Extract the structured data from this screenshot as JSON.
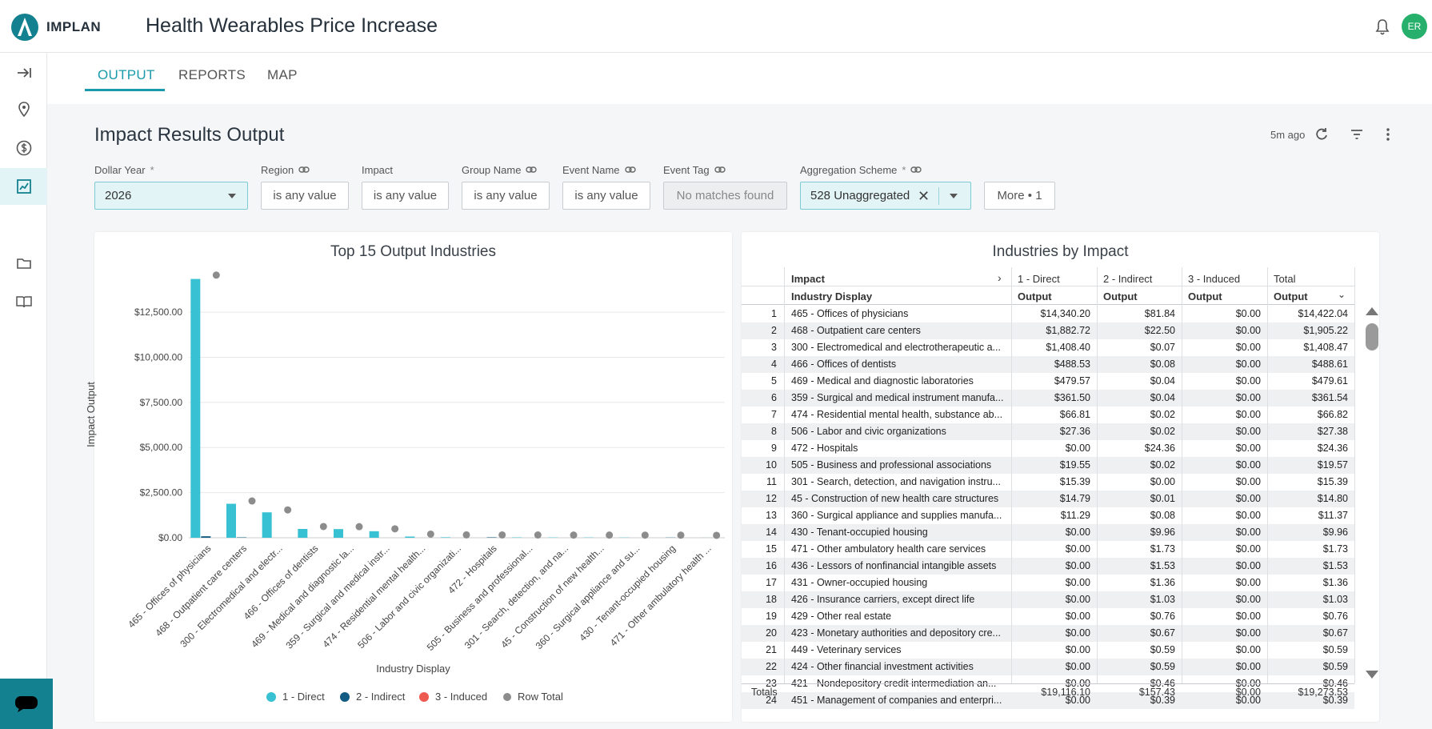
{
  "brand": "IMPLAN",
  "app_title": "Health Wearables Price Increase",
  "user_initials": "ER",
  "colors": {
    "accent": "#1a9bab",
    "direct": "#38c1d3",
    "indirect": "#125b82",
    "induced": "#ef5a50",
    "total": "#8c8c8c"
  },
  "tabs": [
    "OUTPUT",
    "REPORTS",
    "MAP"
  ],
  "section_title": "Impact Results Output",
  "updated": "5m ago",
  "filters": {
    "dollar_year": {
      "label": "Dollar Year",
      "req": "*",
      "value": "2026"
    },
    "region": {
      "label": "Region",
      "value": "is any value"
    },
    "impact": {
      "label": "Impact",
      "value": "is any value"
    },
    "group_name": {
      "label": "Group Name",
      "value": "is any value"
    },
    "event_name": {
      "label": "Event Name",
      "value": "is any value"
    },
    "event_tag": {
      "label": "Event Tag",
      "value": "No matches found"
    },
    "aggregation": {
      "label": "Aggregation Scheme",
      "req": "*",
      "value": "528 Unaggregated"
    },
    "more": "More • 1"
  },
  "chart_data": {
    "type": "bar",
    "title": "Top 15 Output Industries",
    "xlabel": "Industry Display",
    "ylabel": "Impact Output",
    "ylim": [
      0,
      14500
    ],
    "yticks": [
      "$0.00",
      "$2,500.00",
      "$5,000.00",
      "$7,500.00",
      "$10,000.00",
      "$12,500.00"
    ],
    "categories": [
      "465 - Offices of physicians",
      "468 - Outpatient care centers",
      "300 - Electromedical and electr...",
      "466 - Offices of dentists",
      "469 - Medical and diagnostic la...",
      "359 - Surgical and medical instr...",
      "474 - Residential mental health...",
      "506 - Labor and civic organizati...",
      "472 - Hospitals",
      "505 - Business and professional...",
      "301 - Search, detection, and na...",
      "45 - Construction of new health...",
      "360 - Surgical appliance and su...",
      "430 - Tenant-occupied housing",
      "471 - Other ambulatory health ..."
    ],
    "series": [
      {
        "name": "1 - Direct",
        "values": [
          14340.2,
          1882.72,
          1408.4,
          488.53,
          479.57,
          361.5,
          66.81,
          27.36,
          0,
          19.55,
          15.39,
          14.79,
          11.29,
          0,
          0
        ]
      },
      {
        "name": "2 - Indirect",
        "values": [
          81.84,
          22.5,
          0.07,
          0.08,
          0.04,
          0.04,
          0.02,
          0.02,
          24.36,
          0.02,
          0,
          0.01,
          0.08,
          9.96,
          1.73
        ]
      },
      {
        "name": "3 - Induced",
        "values": [
          0,
          0,
          0,
          0,
          0,
          0,
          0,
          0,
          0,
          0,
          0,
          0,
          0,
          0,
          0
        ]
      },
      {
        "name": "Row Total",
        "values": [
          14422.04,
          1905.22,
          1408.47,
          488.61,
          479.61,
          361.54,
          66.82,
          27.38,
          24.36,
          19.57,
          15.39,
          14.8,
          11.37,
          9.96,
          1.73
        ]
      }
    ],
    "legend": [
      "1 - Direct",
      "2 - Indirect",
      "3 - Induced",
      "Row Total"
    ]
  },
  "table": {
    "title": "Industries by Impact",
    "group_header": "Impact",
    "col_groups": [
      "1 - Direct",
      "2 - Indirect",
      "3 - Induced",
      "Total"
    ],
    "row_header": "Industry Display",
    "measure": "Output",
    "rows": [
      [
        "1",
        "465 - Offices of physicians",
        "$14,340.20",
        "$81.84",
        "$0.00",
        "$14,422.04"
      ],
      [
        "2",
        "468 - Outpatient care centers",
        "$1,882.72",
        "$22.50",
        "$0.00",
        "$1,905.22"
      ],
      [
        "3",
        "300 - Electromedical and electrotherapeutic a...",
        "$1,408.40",
        "$0.07",
        "$0.00",
        "$1,408.47"
      ],
      [
        "4",
        "466 - Offices of dentists",
        "$488.53",
        "$0.08",
        "$0.00",
        "$488.61"
      ],
      [
        "5",
        "469 - Medical and diagnostic laboratories",
        "$479.57",
        "$0.04",
        "$0.00",
        "$479.61"
      ],
      [
        "6",
        "359 - Surgical and medical instrument manufa...",
        "$361.50",
        "$0.04",
        "$0.00",
        "$361.54"
      ],
      [
        "7",
        "474 - Residential mental health, substance ab...",
        "$66.81",
        "$0.02",
        "$0.00",
        "$66.82"
      ],
      [
        "8",
        "506 - Labor and civic organizations",
        "$27.36",
        "$0.02",
        "$0.00",
        "$27.38"
      ],
      [
        "9",
        "472 - Hospitals",
        "$0.00",
        "$24.36",
        "$0.00",
        "$24.36"
      ],
      [
        "10",
        "505 - Business and professional associations",
        "$19.55",
        "$0.02",
        "$0.00",
        "$19.57"
      ],
      [
        "11",
        "301 - Search, detection, and navigation instru...",
        "$15.39",
        "$0.00",
        "$0.00",
        "$15.39"
      ],
      [
        "12",
        "45 - Construction of new health care structures",
        "$14.79",
        "$0.01",
        "$0.00",
        "$14.80"
      ],
      [
        "13",
        "360 - Surgical appliance and supplies manufa...",
        "$11.29",
        "$0.08",
        "$0.00",
        "$11.37"
      ],
      [
        "14",
        "430 - Tenant-occupied housing",
        "$0.00",
        "$9.96",
        "$0.00",
        "$9.96"
      ],
      [
        "15",
        "471 - Other ambulatory health care services",
        "$0.00",
        "$1.73",
        "$0.00",
        "$1.73"
      ],
      [
        "16",
        "436 - Lessors of nonfinancial intangible assets",
        "$0.00",
        "$1.53",
        "$0.00",
        "$1.53"
      ],
      [
        "17",
        "431 - Owner-occupied housing",
        "$0.00",
        "$1.36",
        "$0.00",
        "$1.36"
      ],
      [
        "18",
        "426 - Insurance carriers, except direct life",
        "$0.00",
        "$1.03",
        "$0.00",
        "$1.03"
      ],
      [
        "19",
        "429 - Other real estate",
        "$0.00",
        "$0.76",
        "$0.00",
        "$0.76"
      ],
      [
        "20",
        "423 - Monetary authorities and depository cre...",
        "$0.00",
        "$0.67",
        "$0.00",
        "$0.67"
      ],
      [
        "21",
        "449 - Veterinary services",
        "$0.00",
        "$0.59",
        "$0.00",
        "$0.59"
      ],
      [
        "22",
        "424 - Other financial investment activities",
        "$0.00",
        "$0.59",
        "$0.00",
        "$0.59"
      ],
      [
        "23",
        "421 - Nondepository credit intermediation an...",
        "$0.00",
        "$0.46",
        "$0.00",
        "$0.46"
      ],
      [
        "24",
        "451 - Management of companies and enterpri...",
        "$0.00",
        "$0.39",
        "$0.00",
        "$0.39"
      ]
    ],
    "totals_label": "Totals",
    "totals": [
      "$19,116.10",
      "$157.43",
      "$0.00",
      "$19,273.53"
    ]
  }
}
